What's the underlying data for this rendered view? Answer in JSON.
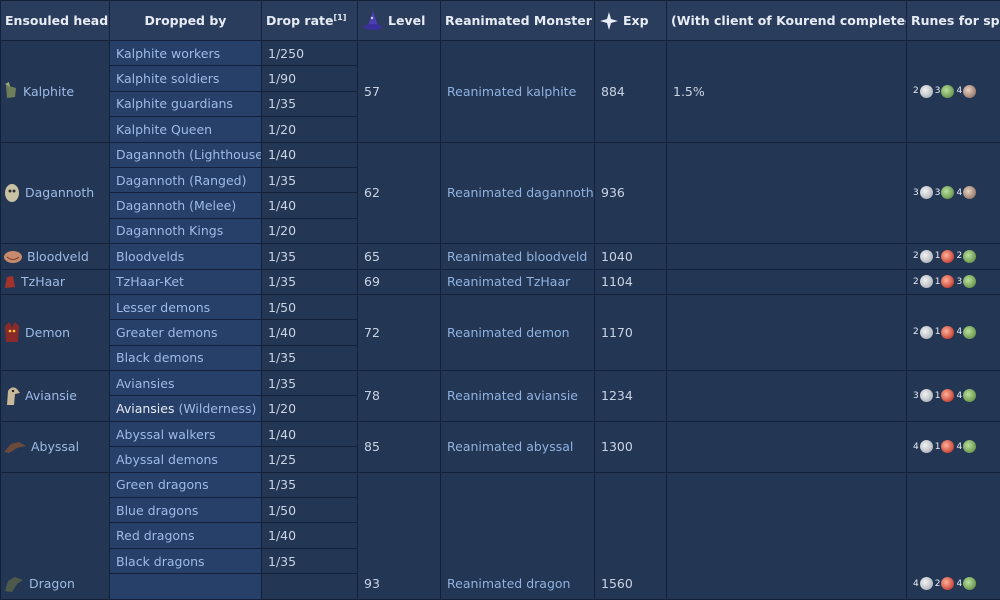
{
  "headers": {
    "head": "Ensouled head",
    "dropped_by": "Dropped by",
    "drop_rate": "Drop rate",
    "drop_rate_ref": "[1]",
    "level": "Level",
    "monster": "Reanimated Monster",
    "exp": "Exp",
    "kourend": "(With client of Kourend completed)",
    "runes": "Runes for spell"
  },
  "rows": {
    "kalphite": {
      "head": "Kalphite",
      "drops": [
        {
          "by": "Kalphite workers",
          "rate": "1/250"
        },
        {
          "by": "Kalphite soldiers",
          "rate": "1/90"
        },
        {
          "by": "Kalphite guardians",
          "rate": "1/35"
        },
        {
          "by": "Kalphite Queen",
          "rate": "1/20"
        }
      ],
      "level": "57",
      "monster": "Reanimated kalphite",
      "exp": "884",
      "kourend": "1.5%",
      "runes": [
        "2",
        "3",
        "4"
      ]
    },
    "dagannoth": {
      "head": "Dagannoth",
      "drops": [
        {
          "by": "Dagannoth (Lighthouse)",
          "rate": "1/40"
        },
        {
          "by": "Dagannoth (Ranged)",
          "rate": "1/35"
        },
        {
          "by": "Dagannoth (Melee)",
          "rate": "1/40"
        },
        {
          "by": "Dagannoth Kings",
          "rate": "1/20"
        }
      ],
      "level": "62",
      "monster": "Reanimated dagannoth",
      "exp": "936",
      "runes": [
        "3",
        "3",
        "4"
      ]
    },
    "bloodveld": {
      "head": "Bloodveld",
      "drops": [
        {
          "by": "Bloodvelds",
          "rate": "1/35"
        }
      ],
      "level": "65",
      "monster": "Reanimated bloodveld",
      "exp": "1040",
      "runes": [
        "2",
        "1",
        "2"
      ]
    },
    "tzhaar": {
      "head": "TzHaar",
      "drops": [
        {
          "by": "TzHaar-Ket",
          "rate": "1/35"
        }
      ],
      "level": "69",
      "monster": "Reanimated TzHaar",
      "exp": "1104",
      "runes": [
        "2",
        "1",
        "3"
      ]
    },
    "demon": {
      "head": "Demon",
      "drops": [
        {
          "by": "Lesser demons",
          "rate": "1/50"
        },
        {
          "by": "Greater demons",
          "rate": "1/40"
        },
        {
          "by": "Black demons",
          "rate": "1/35"
        }
      ],
      "level": "72",
      "monster": "Reanimated demon",
      "exp": "1170",
      "runes": [
        "2",
        "1",
        "4"
      ]
    },
    "aviansie": {
      "head": "Aviansie",
      "drops": [
        {
          "by": "Aviansies",
          "rate": "1/35"
        },
        {
          "by": "Aviansies",
          "by_suffix": " (Wilderness)",
          "rate": "1/20"
        }
      ],
      "level": "78",
      "monster": "Reanimated aviansie",
      "exp": "1234",
      "runes": [
        "3",
        "1",
        "4"
      ]
    },
    "abyssal": {
      "head": "Abyssal",
      "drops": [
        {
          "by": "Abyssal walkers",
          "rate": "1/40"
        },
        {
          "by": "Abyssal demons",
          "rate": "1/25"
        }
      ],
      "level": "85",
      "monster": "Reanimated abyssal",
      "exp": "1300",
      "runes": [
        "4",
        "1",
        "4"
      ]
    },
    "dragon": {
      "head": "Dragon",
      "drops": [
        {
          "by": "Green dragons",
          "rate": "1/35"
        },
        {
          "by": "Blue dragons",
          "rate": "1/50"
        },
        {
          "by": "Red dragons",
          "rate": "1/40"
        },
        {
          "by": "Black dragons",
          "rate": "1/35"
        }
      ],
      "level": "93",
      "monster": "Reanimated dragon",
      "exp": "1560",
      "runes": [
        "4",
        "2",
        "4"
      ]
    }
  }
}
